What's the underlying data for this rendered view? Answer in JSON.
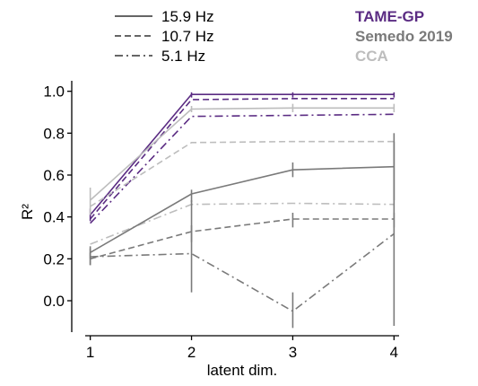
{
  "chart_data": {
    "type": "line",
    "xlabel": "latent dim.",
    "ylabel": "R²",
    "x": [
      1,
      2,
      3,
      4
    ],
    "xlim": [
      0.95,
      4.05
    ],
    "ylim": [
      -0.15,
      1.05
    ],
    "xticks": [
      "1",
      "2",
      "3",
      "4"
    ],
    "yticks": [
      "0.0",
      "0.2",
      "0.4",
      "0.6",
      "0.8",
      "1.0"
    ],
    "frequency_legend": [
      {
        "label": "15.9 Hz",
        "dash": "solid"
      },
      {
        "label": "10.7 Hz",
        "dash": "dashed"
      },
      {
        "label": "5.1 Hz",
        "dash": "dashdot"
      }
    ],
    "method_legend": [
      {
        "label": "TAME-GP",
        "color": "#5b2c83"
      },
      {
        "label": "Semedo 2019",
        "color": "#7a7a7a"
      },
      {
        "label": "CCA",
        "color": "#bdbdbd"
      }
    ],
    "series": [
      {
        "method": "TAME-GP",
        "frequency": "15.9 Hz",
        "color": "#5b2c83",
        "dash": "solid",
        "values": [
          0.41,
          0.985,
          0.985,
          0.985
        ]
      },
      {
        "method": "TAME-GP",
        "frequency": "10.7 Hz",
        "color": "#5b2c83",
        "dash": "dashed",
        "values": [
          0.39,
          0.96,
          0.965,
          0.965
        ]
      },
      {
        "method": "TAME-GP",
        "frequency": "5.1 Hz",
        "color": "#5b2c83",
        "dash": "dashdot",
        "values": [
          0.37,
          0.88,
          0.885,
          0.89
        ]
      },
      {
        "method": "CCA",
        "frequency": "15.9 Hz",
        "color": "#bdbdbd",
        "dash": "solid",
        "values": [
          0.48,
          0.915,
          0.92,
          0.92
        ]
      },
      {
        "method": "CCA",
        "frequency": "10.7 Hz",
        "color": "#bdbdbd",
        "dash": "dashed",
        "values": [
          0.45,
          0.755,
          0.76,
          0.76
        ]
      },
      {
        "method": "CCA",
        "frequency": "5.1 Hz",
        "color": "#bdbdbd",
        "dash": "dashdot",
        "values": [
          0.27,
          0.46,
          0.465,
          0.46
        ]
      },
      {
        "method": "Semedo 2019",
        "frequency": "15.9 Hz",
        "color": "#7a7a7a",
        "dash": "solid",
        "values": [
          0.23,
          0.51,
          0.625,
          0.64
        ],
        "err_low": [
          0.2,
          0.47,
          0.59,
          0.48
        ],
        "err_high": [
          0.26,
          0.53,
          0.66,
          0.8
        ]
      },
      {
        "method": "Semedo 2019",
        "frequency": "10.7 Hz",
        "color": "#7a7a7a",
        "dash": "dashed",
        "values": [
          0.2,
          0.33,
          0.39,
          0.39
        ],
        "err_low": [
          0.17,
          0.28,
          0.35,
          0.35
        ],
        "err_high": [
          0.23,
          0.36,
          0.42,
          0.42
        ]
      },
      {
        "method": "Semedo 2019",
        "frequency": "5.1 Hz",
        "color": "#7a7a7a",
        "dash": "dashdot",
        "values": [
          0.21,
          0.225,
          -0.05,
          0.32
        ],
        "err_low": [
          0.17,
          0.04,
          -0.13,
          -0.12
        ],
        "err_high": [
          0.25,
          0.48,
          0.04,
          0.76
        ]
      },
      {
        "method": "TAME-GP",
        "frequency": "error",
        "color": "#5b2c83",
        "dash": "none",
        "values": [
          0.41,
          0.985,
          0.985,
          0.985
        ],
        "err_low": [
          0.38,
          0.97,
          0.97,
          0.97
        ],
        "err_high": [
          0.44,
          0.995,
          0.995,
          0.995
        ]
      },
      {
        "method": "CCA",
        "frequency": "error",
        "color": "#bdbdbd",
        "dash": "none",
        "values": [
          0.48,
          0.915,
          0.92,
          0.92
        ],
        "err_low": [
          0.41,
          0.9,
          0.9,
          0.9
        ],
        "err_high": [
          0.54,
          0.93,
          0.94,
          0.94
        ]
      }
    ]
  }
}
